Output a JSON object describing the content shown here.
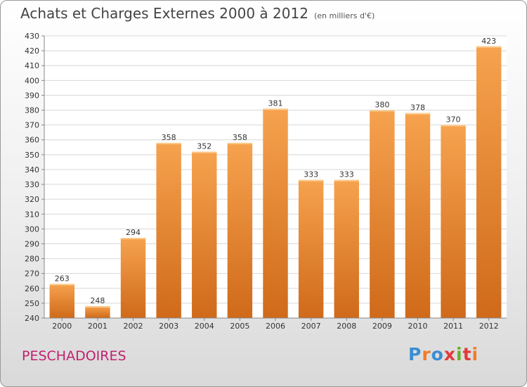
{
  "header": {
    "title": "Achats et Charges Externes 2000 à 2012",
    "subtitle": "(en milliers d'€)"
  },
  "footer": {
    "place": "PESCHADOIRES",
    "logo_text": "Proxiti",
    "logo_colors": [
      "#3a8dd4",
      "#f07d2a",
      "#3a8dd4",
      "#e23a3a",
      "#66b02d",
      "#e23a3a",
      "#f07d2a"
    ]
  },
  "chart_data": {
    "type": "bar",
    "title": "Achats et Charges Externes 2000 à 2012",
    "subtitle": "(en milliers d'€)",
    "categories": [
      "2000",
      "2001",
      "2002",
      "2003",
      "2004",
      "2005",
      "2006",
      "2007",
      "2008",
      "2009",
      "2010",
      "2011",
      "2012"
    ],
    "values": [
      263,
      248,
      294,
      358,
      352,
      358,
      381,
      333,
      333,
      380,
      378,
      370,
      423
    ],
    "ylim": [
      240,
      430
    ],
    "ytick_step": 10,
    "grid": true,
    "bar_color_top": "#f6a24e",
    "bar_color_bottom": "#cf6a1a"
  }
}
